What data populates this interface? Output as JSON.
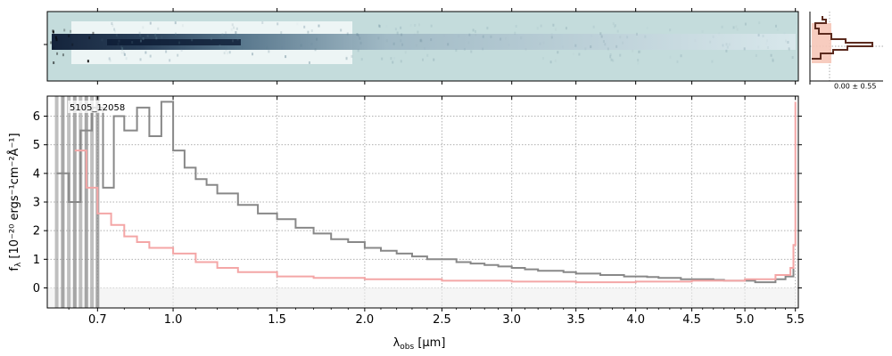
{
  "chart_data": {
    "type": "line",
    "label": "5105_12058",
    "xlabel": "λ",
    "xlabel_sub": "obs",
    "xlabel_unit": " [μm]",
    "ylabel": "f",
    "ylabel_sub": "λ",
    "ylabel_unit": " [10⁻²⁰ ergs⁻¹cm⁻²Å⁻¹]",
    "x_scale": "sqrt",
    "xlim": [
      0.53,
      5.53
    ],
    "ylim": [
      -0.7,
      6.7
    ],
    "x_ticks": [
      0.7,
      1.0,
      1.5,
      2.0,
      2.5,
      3.0,
      3.5,
      4.0,
      4.5,
      5.0,
      5.5
    ],
    "x_ticklabels": [
      "0.7",
      "1.0",
      "1.5",
      "2.0",
      "2.5",
      "3.0",
      "3.5",
      "4.0",
      "4.5",
      "5.0",
      "5.5"
    ],
    "y_ticks": [
      0,
      1,
      2,
      3,
      4,
      5,
      6
    ],
    "y_ticklabels": [
      "0",
      "1",
      "2",
      "3",
      "4",
      "5",
      "6"
    ],
    "grid": true,
    "series": [
      {
        "color": "#888888",
        "x": [
          0.56,
          0.6,
          0.64,
          0.68,
          0.72,
          0.76,
          0.8,
          0.85,
          0.9,
          0.95,
          1.0,
          1.05,
          1.1,
          1.15,
          1.2,
          1.3,
          1.4,
          1.5,
          1.6,
          1.7,
          1.8,
          1.9,
          2.0,
          2.1,
          2.2,
          2.3,
          2.4,
          2.5,
          2.6,
          2.7,
          2.8,
          2.9,
          3.0,
          3.1,
          3.2,
          3.3,
          3.4,
          3.5,
          3.6,
          3.7,
          3.8,
          3.9,
          4.0,
          4.1,
          4.2,
          4.3,
          4.4,
          4.5,
          4.6,
          4.7,
          4.8,
          4.9,
          5.0,
          5.1,
          5.2,
          5.3,
          5.4,
          5.48
        ],
        "y": [
          4.0,
          3.0,
          5.5,
          6.3,
          3.5,
          6.0,
          5.5,
          6.3,
          5.3,
          6.5,
          4.8,
          4.2,
          3.8,
          3.6,
          3.3,
          2.9,
          2.6,
          2.4,
          2.1,
          1.9,
          1.7,
          1.6,
          1.4,
          1.3,
          1.2,
          1.1,
          1.0,
          1.0,
          0.9,
          0.85,
          0.8,
          0.75,
          0.7,
          0.65,
          0.6,
          0.6,
          0.55,
          0.5,
          0.5,
          0.45,
          0.45,
          0.4,
          0.4,
          0.38,
          0.35,
          0.35,
          0.3,
          0.3,
          0.3,
          0.28,
          0.25,
          0.25,
          0.25,
          0.2,
          0.2,
          0.3,
          0.4,
          1.0
        ]
      },
      {
        "color": "#f4a6a6",
        "x": [
          0.62,
          0.66,
          0.7,
          0.75,
          0.8,
          0.85,
          0.9,
          1.0,
          1.1,
          1.2,
          1.3,
          1.5,
          1.7,
          2.0,
          2.5,
          3.0,
          3.5,
          4.0,
          4.5,
          5.0,
          5.3,
          5.45,
          5.48,
          5.5
        ],
        "y": [
          4.8,
          3.5,
          2.6,
          2.2,
          1.8,
          1.6,
          1.4,
          1.2,
          0.9,
          0.7,
          0.55,
          0.4,
          0.35,
          0.3,
          0.25,
          0.22,
          0.2,
          0.22,
          0.25,
          0.3,
          0.45,
          0.7,
          1.5,
          6.5
        ]
      }
    ]
  },
  "side_panel": {
    "label": "0.00 ± 0.55"
  }
}
